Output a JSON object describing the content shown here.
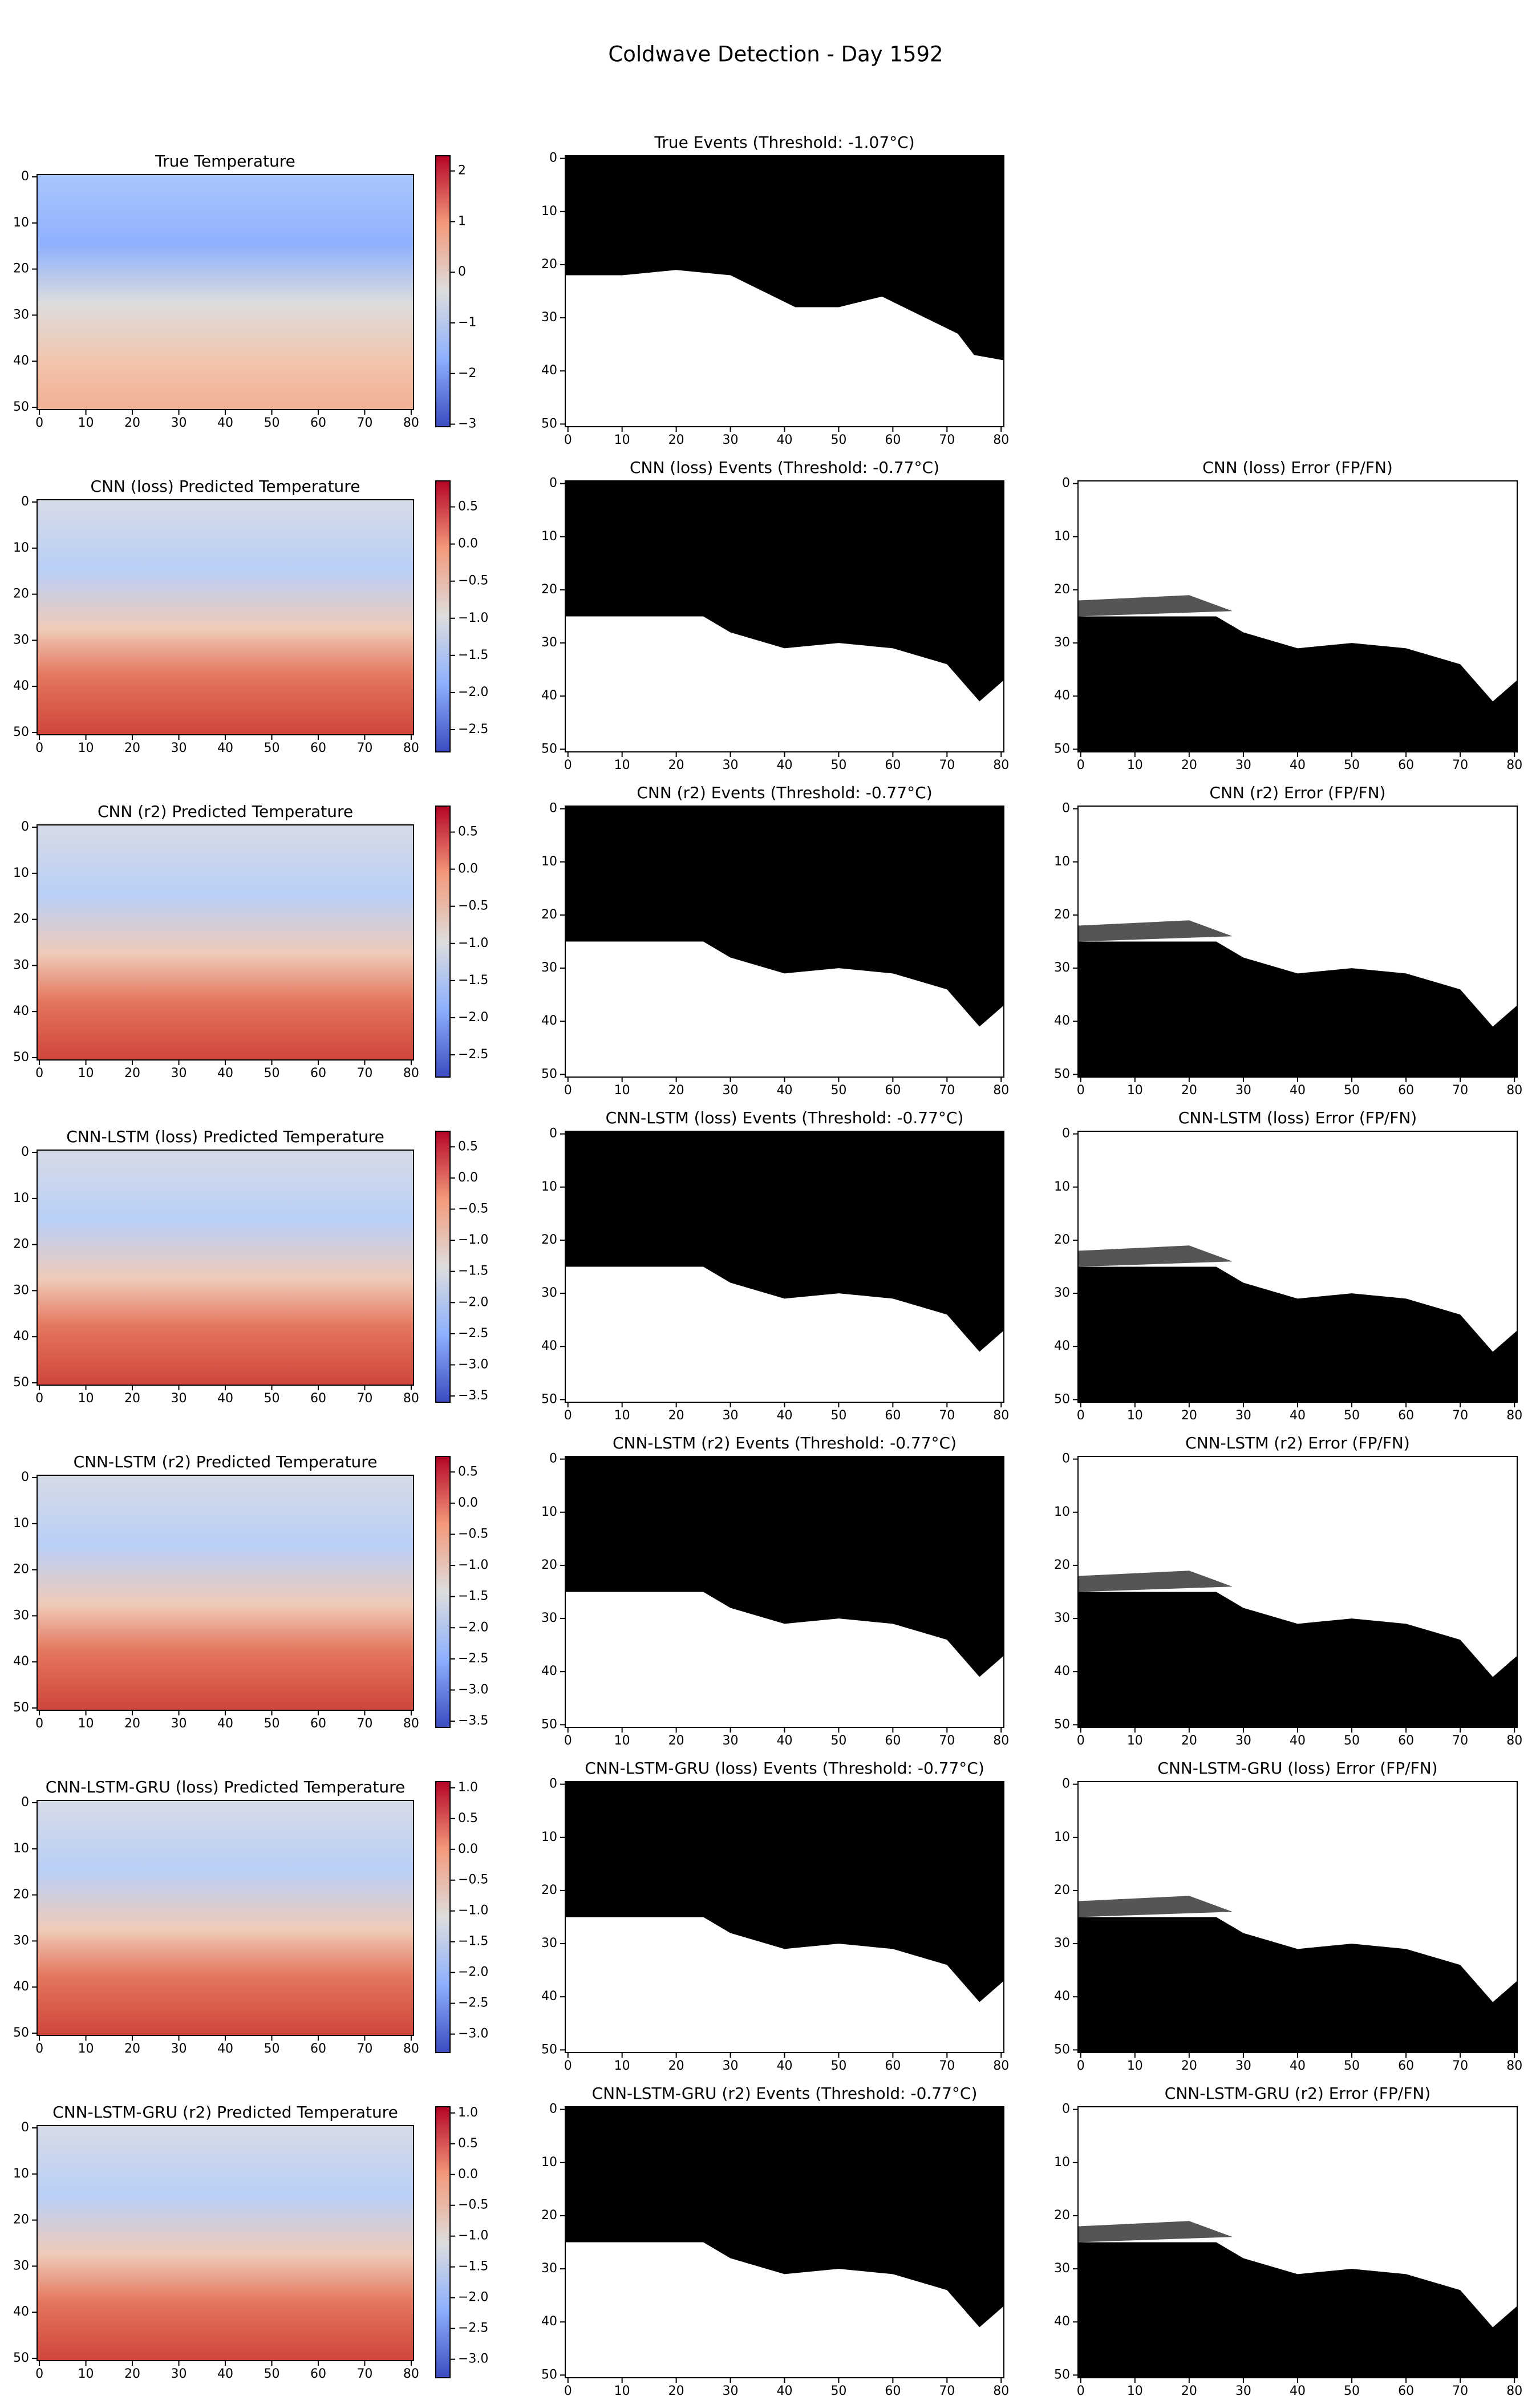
{
  "title": "Coldwave Detection - Day 1592",
  "chart_data": [
    {
      "type": "heatmap",
      "title": "True Temperature",
      "colormap": "coolwarm",
      "xlim": [
        -0.5,
        80.5
      ],
      "ylim": [
        50.5,
        -0.5
      ],
      "xticks": [
        0,
        10,
        20,
        30,
        40,
        50,
        60,
        70,
        80
      ],
      "yticks": [
        0,
        10,
        20,
        30,
        40,
        50
      ],
      "colorbar": {
        "lim": [
          -3.05,
          2.3
        ],
        "ticks": [
          2,
          1,
          0,
          {
            "value": -1,
            "label": "−1"
          },
          {
            "value": -2,
            "label": "−2"
          },
          {
            "value": -3,
            "label": "−3"
          }
        ]
      }
    },
    {
      "type": "heatmap",
      "title": "True Events (Threshold: -1.07°C)",
      "colormap": "gray",
      "xlim": [
        -0.5,
        80.5
      ],
      "ylim": [
        50.5,
        -0.5
      ],
      "xticks": [
        0,
        10,
        20,
        30,
        40,
        50,
        60,
        70,
        80
      ],
      "yticks": [
        0,
        10,
        20,
        30,
        40,
        50
      ]
    },
    {
      "type": "heatmap",
      "title": "CNN (loss) Predicted Temperature",
      "colormap": "coolwarm",
      "xlim": [
        -0.5,
        80.5
      ],
      "ylim": [
        50.5,
        -0.5
      ],
      "xticks": [
        0,
        10,
        20,
        30,
        40,
        50,
        60,
        70,
        80
      ],
      "yticks": [
        0,
        10,
        20,
        30,
        40,
        50
      ],
      "colorbar": {
        "lim": [
          -2.8,
          0.85
        ],
        "ticks": [
          0.5,
          {
            "value": 0,
            "label": "0.0"
          },
          {
            "value": -0.5,
            "label": "−0.5"
          },
          {
            "value": -1,
            "label": "−1.0"
          },
          {
            "value": -1.5,
            "label": "−1.5"
          },
          {
            "value": -2,
            "label": "−2.0"
          },
          {
            "value": -2.5,
            "label": "−2.5"
          }
        ]
      }
    },
    {
      "type": "heatmap",
      "title": "CNN (loss) Events (Threshold: -0.77°C)",
      "colormap": "gray",
      "xlim": [
        -0.5,
        80.5
      ],
      "ylim": [
        50.5,
        -0.5
      ],
      "xticks": [
        0,
        10,
        20,
        30,
        40,
        50,
        60,
        70,
        80
      ],
      "yticks": [
        0,
        10,
        20,
        30,
        40,
        50
      ]
    },
    {
      "type": "heatmap",
      "title": "CNN (loss) Error (FP/FN)",
      "colormap": "gray",
      "xlim": [
        -0.5,
        80.5
      ],
      "ylim": [
        50.5,
        -0.5
      ],
      "xticks": [
        0,
        10,
        20,
        30,
        40,
        50,
        60,
        70,
        80
      ],
      "yticks": [
        0,
        10,
        20,
        30,
        40,
        50
      ]
    },
    {
      "type": "heatmap",
      "title": "CNN (r2) Predicted Temperature",
      "colormap": "coolwarm",
      "xlim": [
        -0.5,
        80.5
      ],
      "ylim": [
        50.5,
        -0.5
      ],
      "xticks": [
        0,
        10,
        20,
        30,
        40,
        50,
        60,
        70,
        80
      ],
      "yticks": [
        0,
        10,
        20,
        30,
        40,
        50
      ],
      "colorbar": {
        "lim": [
          -2.8,
          0.85
        ],
        "ticks": [
          0.5,
          {
            "value": 0,
            "label": "0.0"
          },
          {
            "value": -0.5,
            "label": "−0.5"
          },
          {
            "value": -1,
            "label": "−1.0"
          },
          {
            "value": -1.5,
            "label": "−1.5"
          },
          {
            "value": -2,
            "label": "−2.0"
          },
          {
            "value": -2.5,
            "label": "−2.5"
          }
        ]
      }
    },
    {
      "type": "heatmap",
      "title": "CNN (r2) Events (Threshold: -0.77°C)",
      "colormap": "gray",
      "xlim": [
        -0.5,
        80.5
      ],
      "ylim": [
        50.5,
        -0.5
      ],
      "xticks": [
        0,
        10,
        20,
        30,
        40,
        50,
        60,
        70,
        80
      ],
      "yticks": [
        0,
        10,
        20,
        30,
        40,
        50
      ]
    },
    {
      "type": "heatmap",
      "title": "CNN (r2) Error (FP/FN)",
      "colormap": "gray",
      "xlim": [
        -0.5,
        80.5
      ],
      "ylim": [
        50.5,
        -0.5
      ],
      "xticks": [
        0,
        10,
        20,
        30,
        40,
        50,
        60,
        70,
        80
      ],
      "yticks": [
        0,
        10,
        20,
        30,
        40,
        50
      ]
    },
    {
      "type": "heatmap",
      "title": "CNN-LSTM (loss) Predicted Temperature",
      "colormap": "coolwarm",
      "xlim": [
        -0.5,
        80.5
      ],
      "ylim": [
        50.5,
        -0.5
      ],
      "xticks": [
        0,
        10,
        20,
        30,
        40,
        50,
        60,
        70,
        80
      ],
      "yticks": [
        0,
        10,
        20,
        30,
        40,
        50
      ],
      "colorbar": {
        "lim": [
          -3.6,
          0.75
        ],
        "ticks": [
          0.5,
          {
            "value": 0,
            "label": "0.0"
          },
          {
            "value": -0.5,
            "label": "−0.5"
          },
          {
            "value": -1,
            "label": "−1.0"
          },
          {
            "value": -1.5,
            "label": "−1.5"
          },
          {
            "value": -2,
            "label": "−2.0"
          },
          {
            "value": -2.5,
            "label": "−2.5"
          },
          {
            "value": -3,
            "label": "−3.0"
          },
          {
            "value": -3.5,
            "label": "−3.5"
          }
        ]
      }
    },
    {
      "type": "heatmap",
      "title": "CNN-LSTM (loss) Events (Threshold: -0.77°C)",
      "colormap": "gray",
      "xlim": [
        -0.5,
        80.5
      ],
      "ylim": [
        50.5,
        -0.5
      ],
      "xticks": [
        0,
        10,
        20,
        30,
        40,
        50,
        60,
        70,
        80
      ],
      "yticks": [
        0,
        10,
        20,
        30,
        40,
        50
      ]
    },
    {
      "type": "heatmap",
      "title": "CNN-LSTM (loss) Error (FP/FN)",
      "colormap": "gray",
      "xlim": [
        -0.5,
        80.5
      ],
      "ylim": [
        50.5,
        -0.5
      ],
      "xticks": [
        0,
        10,
        20,
        30,
        40,
        50,
        60,
        70,
        80
      ],
      "yticks": [
        0,
        10,
        20,
        30,
        40,
        50
      ]
    },
    {
      "type": "heatmap",
      "title": "CNN-LSTM (r2) Predicted Temperature",
      "colormap": "coolwarm",
      "xlim": [
        -0.5,
        80.5
      ],
      "ylim": [
        50.5,
        -0.5
      ],
      "xticks": [
        0,
        10,
        20,
        30,
        40,
        50,
        60,
        70,
        80
      ],
      "yticks": [
        0,
        10,
        20,
        30,
        40,
        50
      ],
      "colorbar": {
        "lim": [
          -3.6,
          0.75
        ],
        "ticks": [
          0.5,
          {
            "value": 0,
            "label": "0.0"
          },
          {
            "value": -0.5,
            "label": "−0.5"
          },
          {
            "value": -1,
            "label": "−1.0"
          },
          {
            "value": -1.5,
            "label": "−1.5"
          },
          {
            "value": -2,
            "label": "−2.0"
          },
          {
            "value": -2.5,
            "label": "−2.5"
          },
          {
            "value": -3,
            "label": "−3.0"
          },
          {
            "value": -3.5,
            "label": "−3.5"
          }
        ]
      }
    },
    {
      "type": "heatmap",
      "title": "CNN-LSTM (r2) Events (Threshold: -0.77°C)",
      "colormap": "gray",
      "xlim": [
        -0.5,
        80.5
      ],
      "ylim": [
        50.5,
        -0.5
      ],
      "xticks": [
        0,
        10,
        20,
        30,
        40,
        50,
        60,
        70,
        80
      ],
      "yticks": [
        0,
        10,
        20,
        30,
        40,
        50
      ]
    },
    {
      "type": "heatmap",
      "title": "CNN-LSTM (r2) Error (FP/FN)",
      "colormap": "gray",
      "xlim": [
        -0.5,
        80.5
      ],
      "ylim": [
        50.5,
        -0.5
      ],
      "xticks": [
        0,
        10,
        20,
        30,
        40,
        50,
        60,
        70,
        80
      ],
      "yticks": [
        0,
        10,
        20,
        30,
        40,
        50
      ]
    },
    {
      "type": "heatmap",
      "title": "CNN-LSTM-GRU (loss) Predicted Temperature",
      "colormap": "coolwarm",
      "xlim": [
        -0.5,
        80.5
      ],
      "ylim": [
        50.5,
        -0.5
      ],
      "xticks": [
        0,
        10,
        20,
        30,
        40,
        50,
        60,
        70,
        80
      ],
      "yticks": [
        0,
        10,
        20,
        30,
        40,
        50
      ],
      "colorbar": {
        "lim": [
          -3.3,
          1.1
        ],
        "ticks": [
          {
            "value": 1,
            "label": "1.0"
          },
          0.5,
          {
            "value": 0,
            "label": "0.0"
          },
          {
            "value": -0.5,
            "label": "−0.5"
          },
          {
            "value": -1,
            "label": "−1.0"
          },
          {
            "value": -1.5,
            "label": "−1.5"
          },
          {
            "value": -2,
            "label": "−2.0"
          },
          {
            "value": -2.5,
            "label": "−2.5"
          },
          {
            "value": -3,
            "label": "−3.0"
          }
        ]
      }
    },
    {
      "type": "heatmap",
      "title": "CNN-LSTM-GRU (loss) Events (Threshold: -0.77°C)",
      "colormap": "gray",
      "xlim": [
        -0.5,
        80.5
      ],
      "ylim": [
        50.5,
        -0.5
      ],
      "xticks": [
        0,
        10,
        20,
        30,
        40,
        50,
        60,
        70,
        80
      ],
      "yticks": [
        0,
        10,
        20,
        30,
        40,
        50
      ]
    },
    {
      "type": "heatmap",
      "title": "CNN-LSTM-GRU (loss) Error (FP/FN)",
      "colormap": "gray",
      "xlim": [
        -0.5,
        80.5
      ],
      "ylim": [
        50.5,
        -0.5
      ],
      "xticks": [
        0,
        10,
        20,
        30,
        40,
        50,
        60,
        70,
        80
      ],
      "yticks": [
        0,
        10,
        20,
        30,
        40,
        50
      ]
    },
    {
      "type": "heatmap",
      "title": "CNN-LSTM-GRU (r2) Predicted Temperature",
      "colormap": "coolwarm",
      "xlim": [
        -0.5,
        80.5
      ],
      "ylim": [
        50.5,
        -0.5
      ],
      "xticks": [
        0,
        10,
        20,
        30,
        40,
        50,
        60,
        70,
        80
      ],
      "yticks": [
        0,
        10,
        20,
        30,
        40,
        50
      ],
      "colorbar": {
        "lim": [
          -3.3,
          1.1
        ],
        "ticks": [
          {
            "value": 1,
            "label": "1.0"
          },
          0.5,
          {
            "value": 0,
            "label": "0.0"
          },
          {
            "value": -0.5,
            "label": "−0.5"
          },
          {
            "value": -1,
            "label": "−1.0"
          },
          {
            "value": -1.5,
            "label": "−1.5"
          },
          {
            "value": -2,
            "label": "−2.0"
          },
          {
            "value": -2.5,
            "label": "−2.5"
          },
          {
            "value": -3,
            "label": "−3.0"
          }
        ]
      }
    },
    {
      "type": "heatmap",
      "title": "CNN-LSTM-GRU (r2) Events (Threshold: -0.77°C)",
      "colormap": "gray",
      "xlim": [
        -0.5,
        80.5
      ],
      "ylim": [
        50.5,
        -0.5
      ],
      "xticks": [
        0,
        10,
        20,
        30,
        40,
        50,
        60,
        70,
        80
      ],
      "yticks": [
        0,
        10,
        20,
        30,
        40,
        50
      ]
    },
    {
      "type": "heatmap",
      "title": "CNN-LSTM-GRU (r2) Error (FP/FN)",
      "colormap": "gray",
      "xlim": [
        -0.5,
        80.5
      ],
      "ylim": [
        50.5,
        -0.5
      ],
      "xticks": [
        0,
        10,
        20,
        30,
        40,
        50,
        60,
        70,
        80
      ],
      "yticks": [
        0,
        10,
        20,
        30,
        40,
        50
      ]
    }
  ]
}
